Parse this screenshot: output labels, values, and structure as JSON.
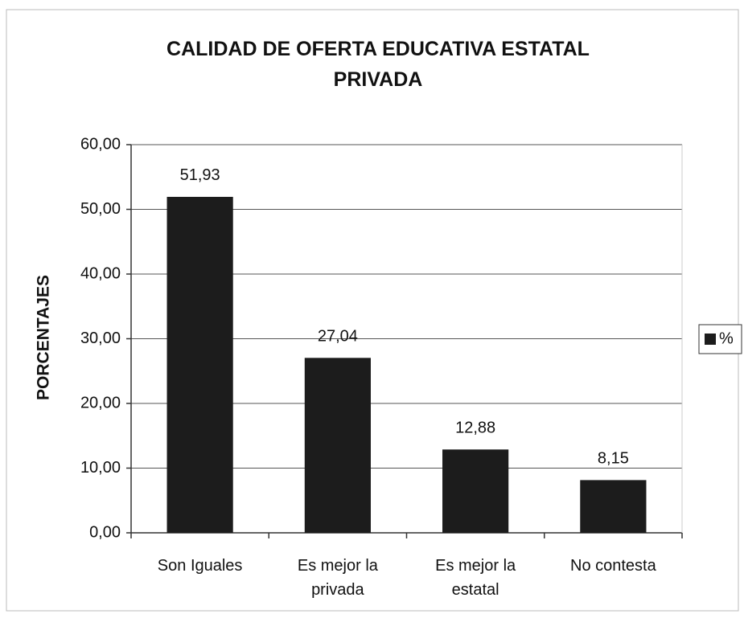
{
  "chart_data": {
    "type": "bar",
    "title": "CALIDAD DE OFERTA EDUCATIVA ESTATAL PRIVADA",
    "y_label": "PORCENTAJES",
    "categories": [
      "Son Iguales",
      "Es mejor la privada",
      "Es mejor la estatal",
      "No contesta"
    ],
    "series": [
      {
        "name": "%",
        "color": "#1c1c1c",
        "values": [
          51.93,
          27.04,
          12.88,
          8.15
        ],
        "value_labels": [
          "51,93",
          "27,04",
          "12,88",
          "8,15"
        ]
      }
    ],
    "ylim": [
      0,
      60
    ],
    "yticks": [
      {
        "value": 0,
        "label": "0,00"
      },
      {
        "value": 10,
        "label": "10,00"
      },
      {
        "value": 20,
        "label": "20,00"
      },
      {
        "value": 30,
        "label": "30,00"
      },
      {
        "value": 40,
        "label": "40,00"
      },
      {
        "value": 50,
        "label": "50,00"
      },
      {
        "value": 60,
        "label": "60,00"
      }
    ],
    "grid": true,
    "legend": "right"
  }
}
